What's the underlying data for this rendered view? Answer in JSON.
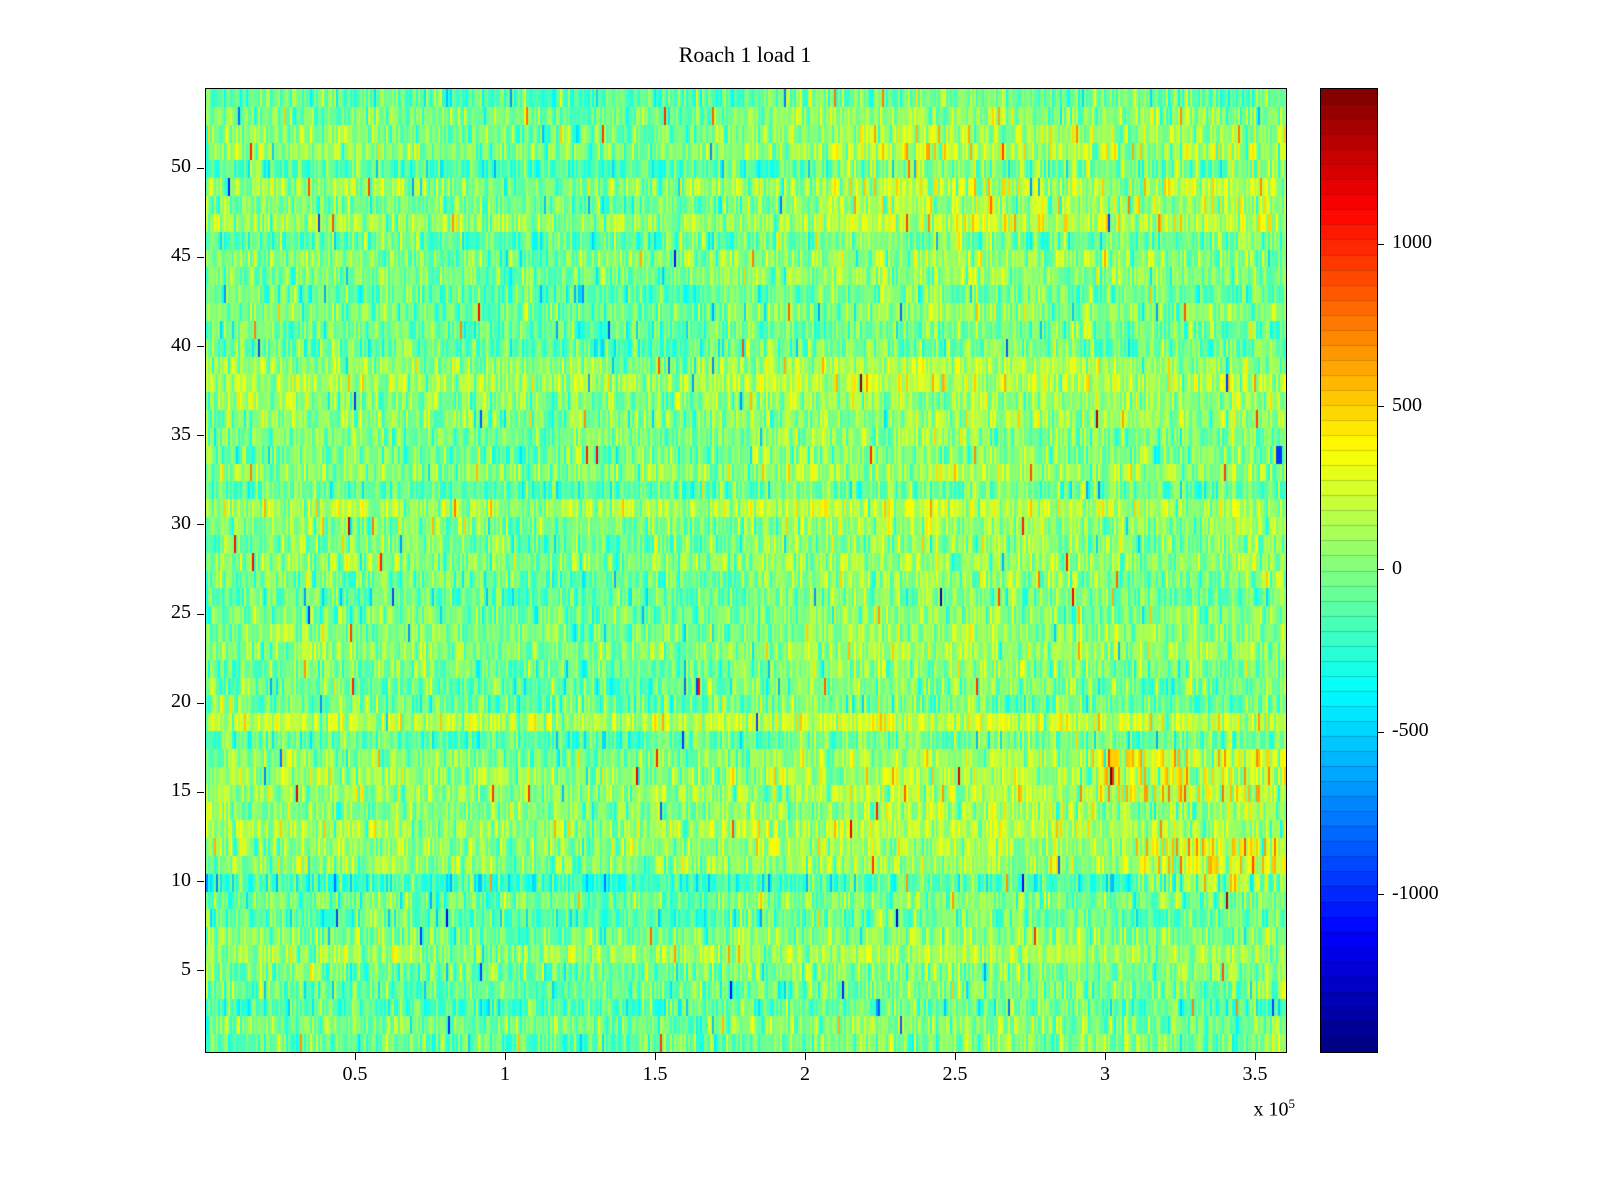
{
  "figure": {
    "background": "#ffffff"
  },
  "chart_data": {
    "type": "heatmap",
    "title": "Roach 1 load 1",
    "colormap": "jet",
    "x_axis": {
      "label": "",
      "min": 0,
      "max": 360000,
      "tick_values": [
        50000,
        100000,
        150000,
        200000,
        250000,
        300000,
        350000
      ],
      "tick_labels": [
        "0.5",
        "1",
        "1.5",
        "2",
        "2.5",
        "3",
        "3.5"
      ],
      "exponent_base": "x 10",
      "exponent_power": "5"
    },
    "y_axis": {
      "label": "",
      "min": 0.5,
      "max": 54.5,
      "tick_values": [
        5,
        10,
        15,
        20,
        25,
        30,
        35,
        40,
        45,
        50
      ],
      "tick_labels": [
        "5",
        "10",
        "15",
        "20",
        "25",
        "30",
        "35",
        "40",
        "45",
        "50"
      ]
    },
    "colorbar": {
      "min": -1480,
      "max": 1480,
      "tick_values": [
        1000,
        500,
        0,
        -500,
        -1000
      ],
      "tick_labels": [
        "1000",
        "500",
        "0",
        "-500",
        "-1000"
      ],
      "levels": 64
    },
    "grid": {
      "rows": 54,
      "cols": 540
    },
    "values": {
      "description": "zero-mean speckled noise, mostly -400..+400 (green/cyan/yellow on jet scale), slightly cooler on the left and warmer on the right, sparse spikes to about +/-1200, warm orange streaks near the right edge around rows 10-17 and rows 46-52, and a small blue blip near the right edge around row 34",
      "mean": 0,
      "std": 180
    },
    "generation": {
      "seed": 42,
      "row_bias_std": 65,
      "noise_std": 165,
      "pos_spike_prob": 0.004,
      "neg_spike_prob": 0.007
    }
  }
}
